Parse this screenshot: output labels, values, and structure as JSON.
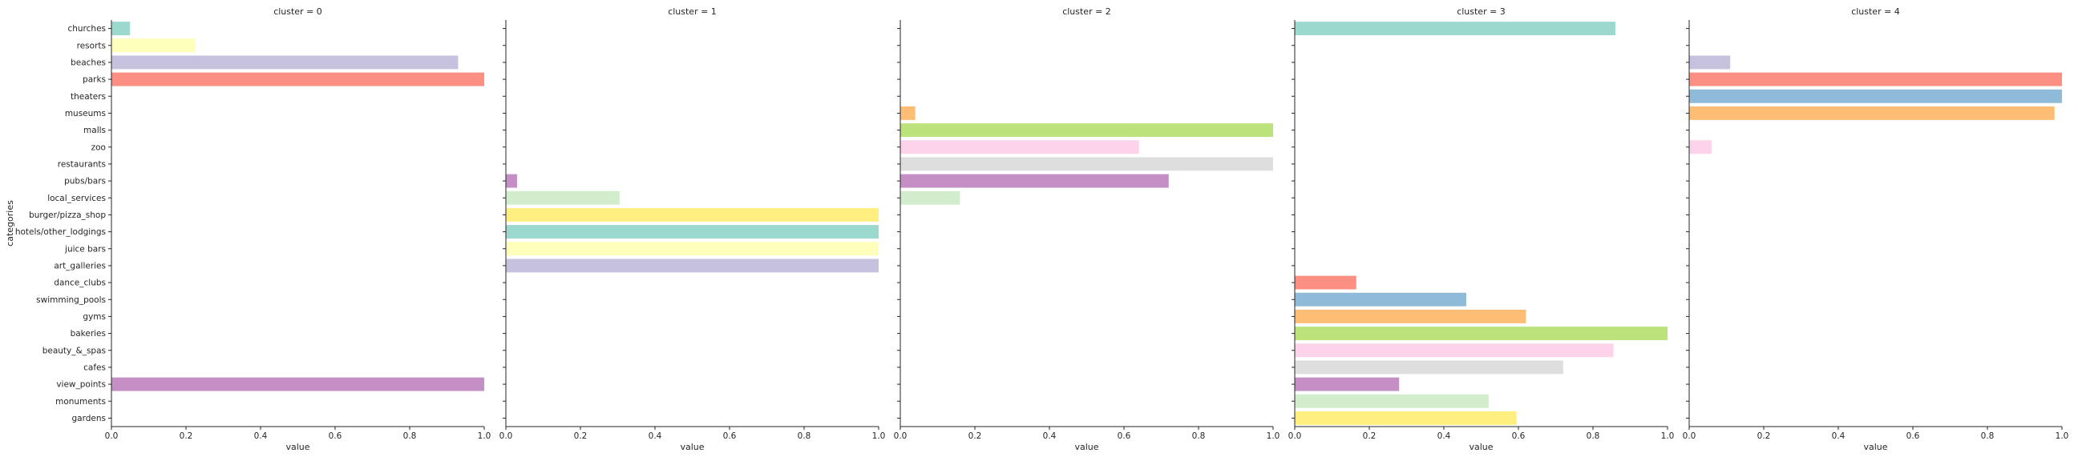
{
  "chart_data": {
    "type": "bar",
    "orientation": "horizontal",
    "facet_title_prefix": "cluster = ",
    "ylabel": "categories",
    "xlabel": "value",
    "xlim": [
      0,
      1
    ],
    "xticks": [
      "0.0",
      "0.2",
      "0.4",
      "0.6",
      "0.8",
      "1.0"
    ],
    "grid": false,
    "categories": [
      "churches",
      "resorts",
      "beaches",
      "parks",
      "theaters",
      "museums",
      "malls",
      "zoo",
      "restaurants",
      "pubs/bars",
      "local_services",
      "burger/pizza_shop",
      "hotels/other_lodgings",
      "juice bars",
      "art_galleries",
      "dance_clubs",
      "swimming_pools",
      "gyms",
      "bakeries",
      "beauty_&_spas",
      "cafes",
      "view_points",
      "monuments",
      "gardens"
    ],
    "colors": [
      "#8dd3c7",
      "#ffffb3",
      "#bebada",
      "#fb8072",
      "#80b1d3",
      "#fdb462",
      "#b3de69",
      "#fccde5",
      "#d9d9d9",
      "#bc80bd",
      "#ccebc5",
      "#ffed6f",
      "#8dd3c7",
      "#ffffb3",
      "#bebada",
      "#fb8072",
      "#80b1d3",
      "#fdb462",
      "#b3de69",
      "#fccde5",
      "#d9d9d9",
      "#bc80bd",
      "#ccebc5",
      "#ffed6f"
    ],
    "facets": [
      {
        "title": "cluster = 0",
        "values": [
          0.05,
          0.225,
          0.93,
          1.0,
          0,
          0,
          0,
          0,
          0,
          0,
          0,
          0,
          0,
          0,
          0,
          0,
          0,
          0,
          0,
          0,
          0,
          1.0,
          0,
          0
        ]
      },
      {
        "title": "cluster = 1",
        "values": [
          0,
          0,
          0,
          0,
          0,
          0,
          0,
          0,
          0,
          0.03,
          0.305,
          1.0,
          1.0,
          1.0,
          1.0,
          0,
          0,
          0,
          0,
          0,
          0,
          0,
          0,
          0
        ]
      },
      {
        "title": "cluster = 2",
        "values": [
          0,
          0,
          0,
          0,
          0,
          0.04,
          1.0,
          0.64,
          1.0,
          0.72,
          0.16,
          0,
          0,
          0,
          0,
          0,
          0,
          0,
          0,
          0,
          0,
          0,
          0,
          0
        ]
      },
      {
        "title": "cluster = 3",
        "values": [
          0.86,
          0,
          0,
          0,
          0,
          0,
          0,
          0,
          0,
          0,
          0,
          0,
          0,
          0,
          0,
          0.165,
          0.46,
          0.62,
          1.0,
          0.855,
          0.72,
          0.28,
          0.52,
          0.595
        ]
      },
      {
        "title": "cluster = 4",
        "values": [
          0,
          0,
          0.11,
          1.0,
          1.0,
          0.98,
          0,
          0.06,
          0,
          0,
          0,
          0,
          0,
          0,
          0,
          0,
          0,
          0,
          0,
          0,
          0,
          0,
          0,
          0
        ]
      }
    ]
  }
}
